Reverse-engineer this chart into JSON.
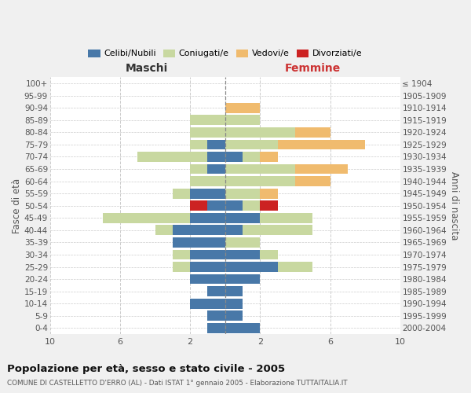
{
  "age_groups": [
    "100+",
    "95-99",
    "90-94",
    "85-89",
    "80-84",
    "75-79",
    "70-74",
    "65-69",
    "60-64",
    "55-59",
    "50-54",
    "45-49",
    "40-44",
    "35-39",
    "30-34",
    "25-29",
    "20-24",
    "15-19",
    "10-14",
    "5-9",
    "0-4"
  ],
  "birth_years": [
    "≤ 1904",
    "1905-1909",
    "1910-1914",
    "1915-1919",
    "1920-1924",
    "1925-1929",
    "1930-1934",
    "1935-1939",
    "1940-1944",
    "1945-1949",
    "1950-1954",
    "1955-1959",
    "1960-1964",
    "1965-1969",
    "1970-1974",
    "1975-1979",
    "1980-1984",
    "1985-1989",
    "1990-1994",
    "1995-1999",
    "2000-2004"
  ],
  "colors": {
    "celibi": "#4878a8",
    "coniugati": "#c8d8a0",
    "vedovi": "#f0bb6e",
    "divorziati": "#cc2222"
  },
  "maschi": {
    "celibi": [
      0,
      0,
      0,
      0,
      0,
      1,
      1,
      1,
      0,
      2,
      1,
      2,
      3,
      3,
      2,
      2,
      2,
      1,
      2,
      1,
      1
    ],
    "coniugati": [
      0,
      0,
      0,
      2,
      2,
      1,
      4,
      1,
      2,
      1,
      0,
      5,
      1,
      0,
      1,
      1,
      0,
      0,
      0,
      0,
      0
    ],
    "vedovi": [
      0,
      0,
      0,
      0,
      0,
      0,
      0,
      0,
      0,
      0,
      0,
      0,
      0,
      0,
      0,
      0,
      0,
      0,
      0,
      0,
      0
    ],
    "divorziati": [
      0,
      0,
      0,
      0,
      0,
      0,
      0,
      0,
      0,
      0,
      1,
      0,
      0,
      0,
      0,
      0,
      0,
      0,
      0,
      0,
      0
    ]
  },
  "femmine": {
    "celibi": [
      0,
      0,
      0,
      0,
      0,
      0,
      1,
      0,
      0,
      0,
      1,
      2,
      1,
      0,
      2,
      3,
      2,
      1,
      1,
      1,
      2
    ],
    "coniugati": [
      0,
      0,
      0,
      2,
      4,
      3,
      1,
      4,
      4,
      2,
      1,
      3,
      4,
      2,
      1,
      2,
      0,
      0,
      0,
      0,
      0
    ],
    "vedovi": [
      0,
      0,
      2,
      0,
      2,
      5,
      1,
      3,
      2,
      1,
      0,
      0,
      0,
      0,
      0,
      0,
      0,
      0,
      0,
      0,
      0
    ],
    "divorziati": [
      0,
      0,
      0,
      0,
      0,
      0,
      0,
      0,
      0,
      0,
      1,
      0,
      0,
      0,
      0,
      0,
      0,
      0,
      0,
      0,
      0
    ]
  },
  "title": "Popolazione per età, sesso e stato civile - 2005",
  "subtitle": "COMUNE DI CASTELLETTO D'ERRO (AL) - Dati ISTAT 1° gennaio 2005 - Elaborazione TUTTAITALIA.IT",
  "xlabel_left": "Maschi",
  "xlabel_right": "Femmine",
  "ylabel_left": "Fasce di età",
  "ylabel_right": "Anni di nascita",
  "xlim": 10,
  "legend_labels": [
    "Celibi/Nubili",
    "Coniugati/e",
    "Vedovi/e",
    "Divorziati/e"
  ],
  "bg_color": "#f0f0f0",
  "plot_bg": "#ffffff",
  "grid_color": "#cccccc"
}
